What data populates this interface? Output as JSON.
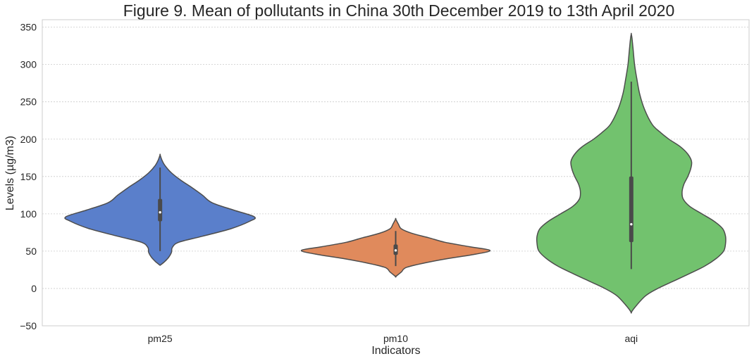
{
  "chart_data": {
    "type": "violin",
    "title": "Figure 9. Mean of pollutants in China 30th December 2019 to 13th April 2020",
    "xlabel": "Indicators",
    "ylabel": "Levels (µg/m3)",
    "ylim": [
      -50,
      360
    ],
    "yticks": [
      -50,
      0,
      50,
      100,
      150,
      200,
      250,
      300,
      350
    ],
    "grid": true,
    "categories": [
      "pm25",
      "pm10",
      "aqi"
    ],
    "colors": [
      "#5a7fcb",
      "#e08a5c",
      "#72c26e"
    ],
    "violins": [
      {
        "category": "pm25",
        "min": 50,
        "q1": 90,
        "median": 102,
        "q3": 120,
        "max": 162,
        "profile": [
          [
            32,
            0.01
          ],
          [
            40,
            0.08
          ],
          [
            48,
            0.12
          ],
          [
            55,
            0.13
          ],
          [
            62,
            0.2
          ],
          [
            70,
            0.45
          ],
          [
            80,
            0.75
          ],
          [
            90,
            0.95
          ],
          [
            96,
            1.0
          ],
          [
            105,
            0.78
          ],
          [
            115,
            0.55
          ],
          [
            125,
            0.45
          ],
          [
            135,
            0.34
          ],
          [
            145,
            0.22
          ],
          [
            155,
            0.12
          ],
          [
            165,
            0.05
          ],
          [
            172,
            0.02
          ],
          [
            179,
            0.0
          ]
        ]
      },
      {
        "category": "pm10",
        "min": 30,
        "q1": 45,
        "median": 51,
        "q3": 59,
        "max": 77,
        "profile": [
          [
            16,
            0.0
          ],
          [
            22,
            0.06
          ],
          [
            28,
            0.11
          ],
          [
            34,
            0.3
          ],
          [
            40,
            0.55
          ],
          [
            46,
            0.85
          ],
          [
            51,
            1.0
          ],
          [
            56,
            0.78
          ],
          [
            62,
            0.52
          ],
          [
            68,
            0.35
          ],
          [
            74,
            0.17
          ],
          [
            80,
            0.06
          ],
          [
            86,
            0.03
          ],
          [
            93,
            0.0
          ]
        ]
      },
      {
        "category": "aqi",
        "min": 26,
        "q1": 62,
        "median": 86,
        "q3": 150,
        "max": 277,
        "profile": [
          [
            -32,
            0.0
          ],
          [
            -25,
            0.04
          ],
          [
            -10,
            0.15
          ],
          [
            0,
            0.28
          ],
          [
            10,
            0.45
          ],
          [
            20,
            0.62
          ],
          [
            30,
            0.78
          ],
          [
            40,
            0.9
          ],
          [
            50,
            0.98
          ],
          [
            60,
            1.0
          ],
          [
            70,
            1.0
          ],
          [
            80,
            0.97
          ],
          [
            90,
            0.88
          ],
          [
            100,
            0.75
          ],
          [
            110,
            0.62
          ],
          [
            120,
            0.55
          ],
          [
            130,
            0.54
          ],
          [
            140,
            0.56
          ],
          [
            150,
            0.6
          ],
          [
            160,
            0.63
          ],
          [
            170,
            0.64
          ],
          [
            180,
            0.6
          ],
          [
            190,
            0.52
          ],
          [
            200,
            0.4
          ],
          [
            210,
            0.3
          ],
          [
            220,
            0.22
          ],
          [
            240,
            0.14
          ],
          [
            260,
            0.09
          ],
          [
            280,
            0.06
          ],
          [
            300,
            0.035
          ],
          [
            320,
            0.02
          ],
          [
            335,
            0.008
          ],
          [
            341,
            0.0
          ]
        ]
      }
    ]
  }
}
